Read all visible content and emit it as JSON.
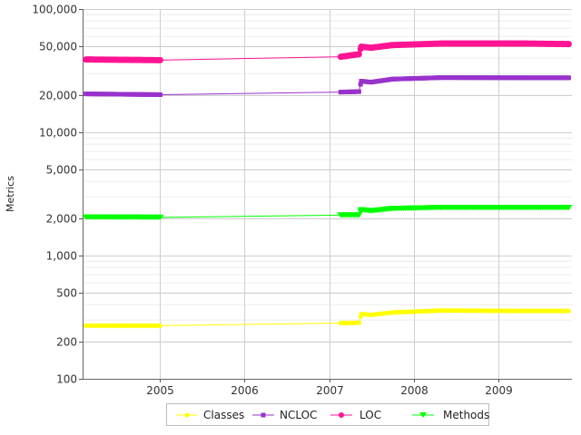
{
  "chart_data": {
    "type": "line",
    "title": "",
    "xlabel": "",
    "ylabel": "Metrics",
    "y_scale": "log",
    "ylim": [
      100,
      100000
    ],
    "xlim": [
      "2004-02-01",
      "2009-11-15"
    ],
    "x_ticks": [
      "2005",
      "2006",
      "2007",
      "2008",
      "2009"
    ],
    "y_ticks": [
      "100",
      "200",
      "500",
      "1,000",
      "2,000",
      "5,000",
      "10,000",
      "20,000",
      "50,000",
      "100,000"
    ],
    "grid": true,
    "legend_position": "bottom",
    "series": [
      {
        "name": "Classes",
        "color": "#ffff00",
        "marker": "circle",
        "points": [
          [
            "2004-02-15",
            270
          ],
          [
            "2005-01-01",
            270
          ],
          [
            "2007-02-20",
            283
          ],
          [
            "2007-05-10",
            285
          ],
          [
            "2007-05-20",
            335
          ],
          [
            "2007-07-01",
            330
          ],
          [
            "2007-10-01",
            345
          ],
          [
            "2008-05-01",
            358
          ],
          [
            "2009-05-01",
            355
          ],
          [
            "2009-11-01",
            355
          ]
        ]
      },
      {
        "name": "NCLOC",
        "color": "#9932cc",
        "marker": "square",
        "points": [
          [
            "2004-02-15",
            20500
          ],
          [
            "2005-01-01",
            20200
          ],
          [
            "2007-02-20",
            21200
          ],
          [
            "2007-05-10",
            21400
          ],
          [
            "2007-05-20",
            26000
          ],
          [
            "2007-07-01",
            25500
          ],
          [
            "2007-10-01",
            27000
          ],
          [
            "2008-05-01",
            27800
          ],
          [
            "2009-05-01",
            27700
          ],
          [
            "2009-11-01",
            27700
          ]
        ]
      },
      {
        "name": "LOC",
        "color": "#ff1493",
        "marker": "circle",
        "points": [
          [
            "2004-02-15",
            39000
          ],
          [
            "2005-01-01",
            38500
          ],
          [
            "2007-02-20",
            41000
          ],
          [
            "2007-05-10",
            43000
          ],
          [
            "2007-05-20",
            49500
          ],
          [
            "2007-07-01",
            48500
          ],
          [
            "2007-10-01",
            51000
          ],
          [
            "2008-05-01",
            52500
          ],
          [
            "2009-05-01",
            52500
          ],
          [
            "2009-11-01",
            52000
          ]
        ]
      },
      {
        "name": "Methods",
        "color": "#00ff00",
        "marker": "triangle-down",
        "points": [
          [
            "2004-02-15",
            2050
          ],
          [
            "2005-01-01",
            2040
          ],
          [
            "2007-02-20",
            2130
          ],
          [
            "2007-05-10",
            2130
          ],
          [
            "2007-05-20",
            2350
          ],
          [
            "2007-07-01",
            2300
          ],
          [
            "2007-10-01",
            2400
          ],
          [
            "2008-05-01",
            2450
          ],
          [
            "2009-05-01",
            2450
          ],
          [
            "2009-11-01",
            2450
          ]
        ]
      }
    ]
  }
}
